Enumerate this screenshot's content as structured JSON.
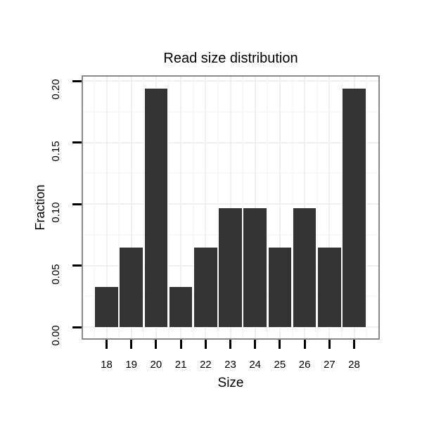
{
  "figure": {
    "title": "Read size distribution",
    "x_axis": {
      "label": "Size",
      "tick_labels": [
        "18",
        "19",
        "20",
        "21",
        "22",
        "23",
        "24",
        "25",
        "26",
        "27",
        "28"
      ]
    },
    "y_axis": {
      "label": "Fraction",
      "tick_labels": [
        "0.00",
        "0.05",
        "0.10",
        "0.15",
        "0.20"
      ]
    }
  },
  "chart_data": {
    "type": "bar",
    "title": "Read size distribution",
    "xlabel": "Size",
    "ylabel": "Fraction",
    "categories": [
      "18",
      "19",
      "20",
      "21",
      "22",
      "23",
      "24",
      "25",
      "26",
      "27",
      "28"
    ],
    "values": [
      0.0323,
      0.0645,
      0.1935,
      0.0323,
      0.0645,
      0.0968,
      0.0968,
      0.0645,
      0.0968,
      0.0645,
      0.1935
    ],
    "ylim": [
      0,
      0.2
    ],
    "y_major_ticks": [
      0.0,
      0.05,
      0.1,
      0.15,
      0.2
    ],
    "y_minor_step": 0.025,
    "y_axis_expansion": 0.05,
    "grid": "major and minor, very light gray, under bars",
    "legend_position": "none",
    "colors": {
      "bar": "#333333",
      "panel_border": "#8a8a8a",
      "grid_major": "#f0f0f0",
      "grid_minor": "#f8f8f8",
      "axis_tick": "#000000",
      "text": "#000000",
      "background": "#ffffff"
    }
  }
}
